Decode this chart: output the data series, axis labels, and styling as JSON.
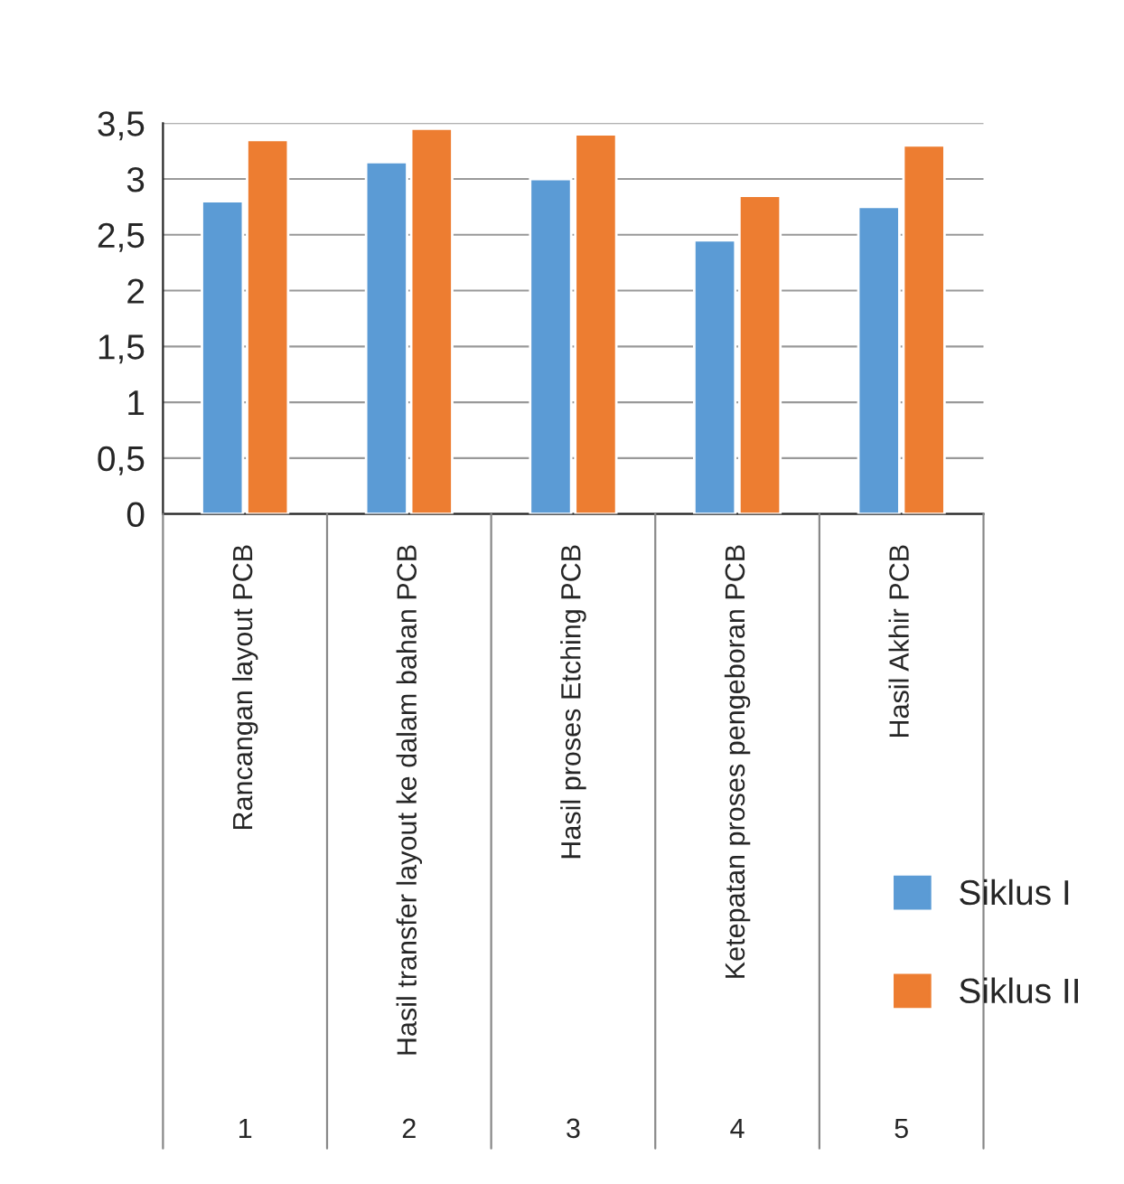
{
  "chart_data": {
    "type": "bar",
    "categories": [
      "Rancangan layout PCB",
      "Hasil transfer layout ke dalam bahan PCB",
      "Hasil proses Etching PCB",
      "Ketepatan proses pengeboran PCB",
      "Hasil Akhir PCB"
    ],
    "series": [
      {
        "name": "Siklus I",
        "color": "#5b9bd5",
        "values": [
          2.8,
          3.15,
          3.0,
          2.45,
          2.75
        ]
      },
      {
        "name": "Siklus II",
        "color": "#ed7d31",
        "values": [
          3.35,
          3.45,
          3.4,
          2.85,
          3.3
        ]
      }
    ],
    "ylim": [
      0,
      3.5
    ],
    "yticks": [
      0,
      {
        "value": 0.5,
        "label": "0,5"
      },
      1,
      {
        "value": 1.5,
        "label": "1,5"
      },
      2,
      {
        "value": 2.5,
        "label": "2,5"
      },
      3,
      {
        "value": 3.5,
        "label": "3,5"
      }
    ],
    "annotations": [
      "1",
      "2",
      "3",
      "4",
      "5"
    ],
    "grid": "y",
    "legend": "bottom right"
  }
}
